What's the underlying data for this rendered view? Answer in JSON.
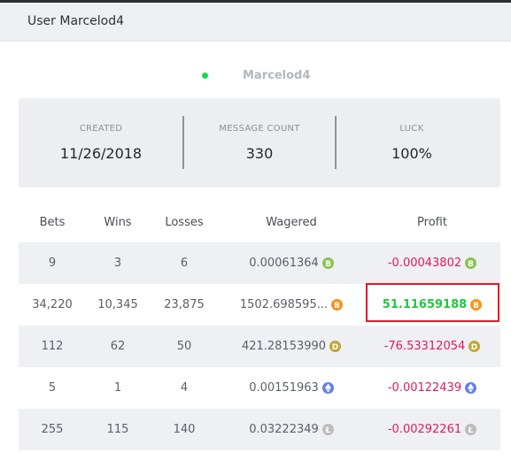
{
  "header": {
    "title": "User Marcelod4"
  },
  "user": {
    "name": "Marcelod4",
    "online_color": "#19d84a"
  },
  "stats": [
    {
      "label": "CREATED",
      "value": "11/26/2018"
    },
    {
      "label": "MESSAGE COUNT",
      "value": "330"
    },
    {
      "label": "LUCK",
      "value": "100%"
    }
  ],
  "table": {
    "columns": [
      "Bets",
      "Wins",
      "Losses",
      "Wagered",
      "Profit"
    ],
    "rows": [
      {
        "bets": "9",
        "wins": "3",
        "losses": "6",
        "wagered": "0.00061364",
        "profit": "-0.00043802",
        "coin": "bitcoin-cash-icon",
        "coin_color": "#8dc351",
        "profit_sign": "negative"
      },
      {
        "bets": "34,220",
        "wins": "10,345",
        "losses": "23,875",
        "wagered": "1502.698595...",
        "profit": "51.11659188",
        "coin": "bitcoin-icon",
        "coin_color": "#f7931a",
        "profit_sign": "positive"
      },
      {
        "bets": "112",
        "wins": "62",
        "losses": "50",
        "wagered": "421.28153990",
        "profit": "-76.53312054",
        "coin": "dogecoin-icon",
        "coin_color": "#c2a633",
        "profit_sign": "negative"
      },
      {
        "bets": "5",
        "wins": "1",
        "losses": "4",
        "wagered": "0.00151963",
        "profit": "-0.00122439",
        "coin": "ethereum-icon",
        "coin_color": "#627eea",
        "profit_sign": "negative"
      },
      {
        "bets": "255",
        "wins": "115",
        "losses": "140",
        "wagered": "0.03222349",
        "profit": "-0.00292261",
        "coin": "litecoin-icon",
        "coin_color": "#bfbbbb",
        "profit_sign": "negative"
      }
    ]
  },
  "colors": {
    "negative": "#e8195c",
    "positive": "#1fc93d",
    "highlight": "#e01b24"
  }
}
